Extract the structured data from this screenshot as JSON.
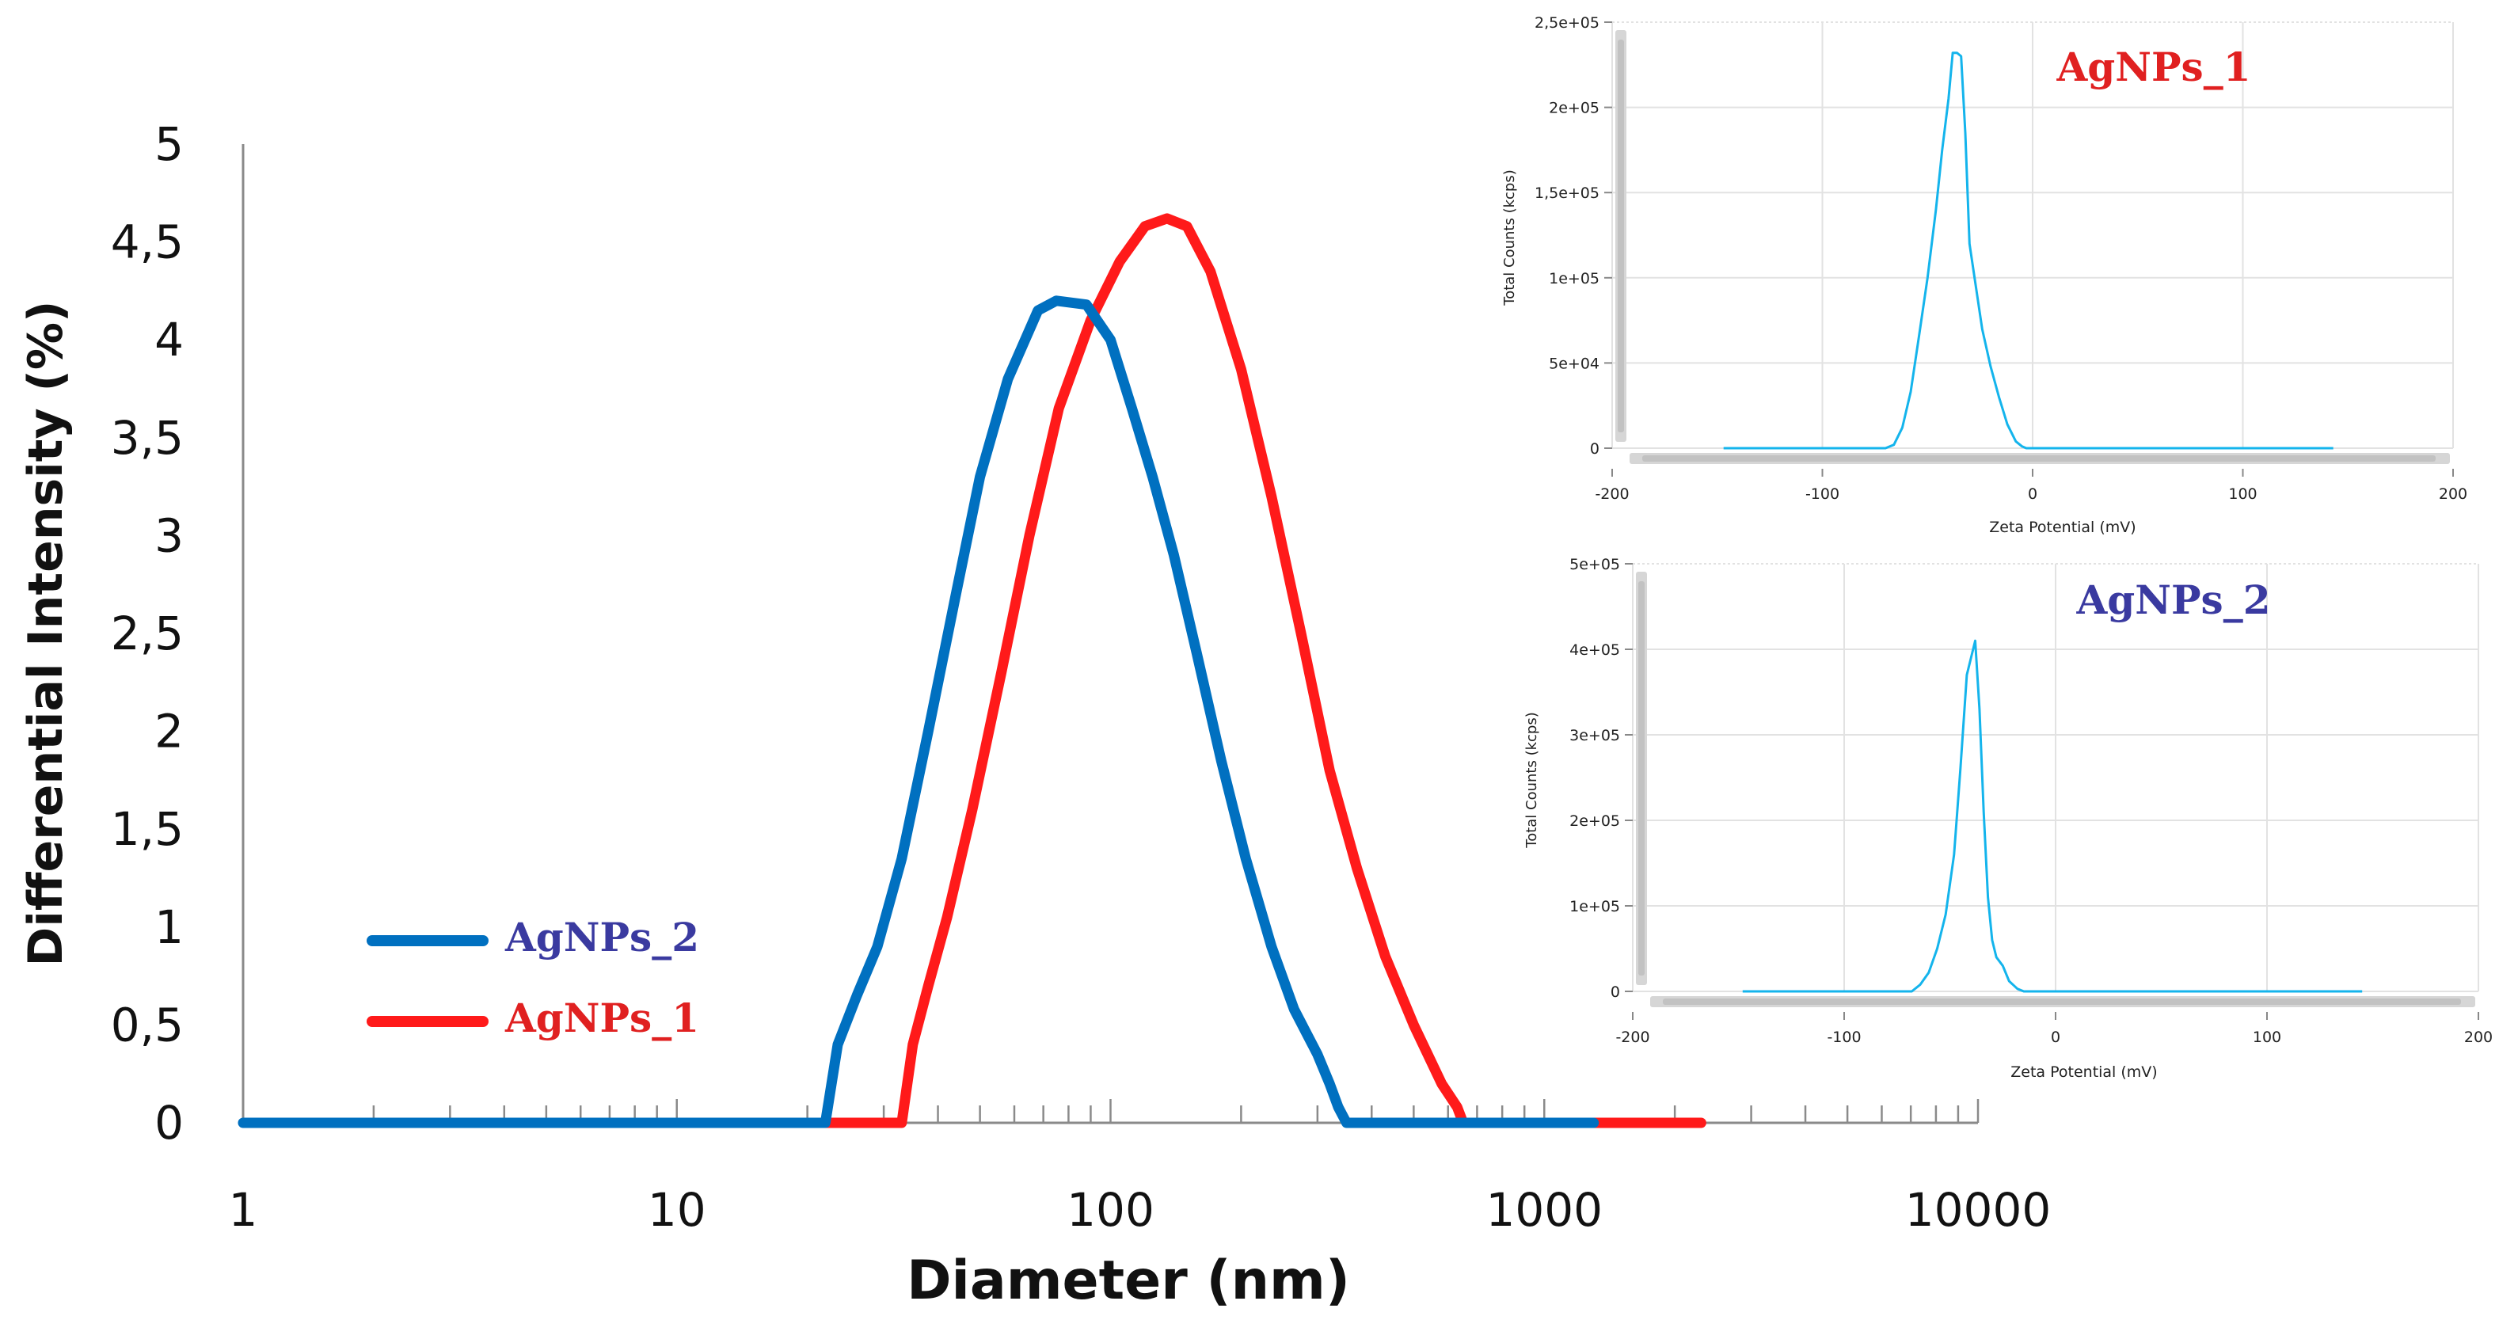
{
  "colors": {
    "series_agnps1": "#ff1a1a",
    "series_agnps2": "#0070c0",
    "inset_line": "#14b4ec",
    "label_red": "#e02020",
    "label_blue": "#3a3aa0"
  },
  "chart_data": [
    {
      "type": "line",
      "name": "main-size-distribution",
      "title": "",
      "xlabel": "Diameter (nm)",
      "ylabel": "Differential Intensity (%)",
      "xscale": "log",
      "xlim": [
        1,
        10000
      ],
      "ylim": [
        0,
        5
      ],
      "xticks": [
        1,
        10,
        100,
        1000,
        10000
      ],
      "xtick_labels": [
        "1",
        "10",
        "100",
        "1000",
        "10000"
      ],
      "yticks": [
        0,
        0.5,
        1,
        1.5,
        2,
        2.5,
        3,
        3.5,
        4,
        4.5,
        5
      ],
      "ytick_labels": [
        "0",
        "0,5",
        "1",
        "1,5",
        "2",
        "2,5",
        "3",
        "3,5",
        "4",
        "4,5",
        "5"
      ],
      "legend_position": "lower-left",
      "series": [
        {
          "name": "AgNPs_2",
          "color_key": "series_agnps2",
          "x": [
            1,
            22,
            23.5,
            26,
            29,
            33,
            38,
            44,
            50,
            58,
            68,
            75,
            88,
            100,
            112,
            125,
            140,
            158,
            180,
            205,
            235,
            265,
            300,
            320,
            335,
            350,
            1300
          ],
          "y": [
            0,
            0,
            0.4,
            0.65,
            0.9,
            1.35,
            2.0,
            2.7,
            3.3,
            3.8,
            4.15,
            4.2,
            4.18,
            4.0,
            3.65,
            3.3,
            2.9,
            2.4,
            1.85,
            1.35,
            0.9,
            0.58,
            0.35,
            0.2,
            0.08,
            0,
            0
          ]
        },
        {
          "name": "AgNPs_1",
          "color_key": "series_agnps1",
          "x": [
            22,
            33,
            35,
            38,
            42,
            48,
            56,
            65,
            76,
            90,
            105,
            120,
            135,
            150,
            170,
            200,
            235,
            275,
            320,
            370,
            430,
            500,
            580,
            630,
            650,
            2300
          ],
          "y": [
            0,
            0,
            0.4,
            0.7,
            1.05,
            1.6,
            2.3,
            3.0,
            3.65,
            4.1,
            4.4,
            4.58,
            4.62,
            4.58,
            4.35,
            3.85,
            3.2,
            2.5,
            1.8,
            1.3,
            0.85,
            0.5,
            0.2,
            0.08,
            0,
            0
          ]
        }
      ]
    },
    {
      "type": "line",
      "name": "zeta-inset-agnps1",
      "title": "AgNPs_1",
      "xlabel": "Zeta Potential (mV)",
      "ylabel": "Total Counts (kcps)",
      "xlim": [
        -200,
        200
      ],
      "ylim": [
        0,
        250000
      ],
      "xticks": [
        -200,
        -100,
        0,
        100,
        200
      ],
      "xtick_labels": [
        "-200",
        "-100",
        "0",
        "100",
        "200"
      ],
      "yticks": [
        0,
        50000,
        100000,
        150000,
        200000,
        250000
      ],
      "ytick_labels": [
        "0",
        "5e+04",
        "1e+05",
        "1,5e+05",
        "2e+05",
        "2,5e+05"
      ],
      "series": [
        {
          "name": "AgNPs_1",
          "x": [
            -147,
            -70,
            -66,
            -62,
            -58,
            -54,
            -50,
            -46,
            -43,
            -40,
            -38,
            -36,
            -34,
            -32,
            -30,
            -27,
            -24,
            -20,
            -16,
            -12,
            -8,
            -5,
            -3,
            143
          ],
          "y": [
            0,
            0,
            2000,
            12000,
            33000,
            66000,
            100000,
            140000,
            175000,
            205000,
            232000,
            232000,
            230000,
            185000,
            120000,
            95000,
            70000,
            48000,
            30000,
            14000,
            4000,
            1000,
            0,
            0
          ]
        }
      ]
    },
    {
      "type": "line",
      "name": "zeta-inset-agnps2",
      "title": "AgNPs_2",
      "xlabel": "Zeta Potential (mV)",
      "ylabel": "Total Counts (kcps)",
      "xlim": [
        -200,
        200
      ],
      "ylim": [
        0,
        500000
      ],
      "xticks": [
        -200,
        -100,
        0,
        100,
        200
      ],
      "xtick_labels": [
        "-200",
        "-100",
        "0",
        "100",
        "200"
      ],
      "yticks": [
        0,
        100000,
        200000,
        300000,
        400000,
        500000
      ],
      "ytick_labels": [
        "0",
        "1e+05",
        "2e+05",
        "3e+05",
        "4e+05",
        "5e+05"
      ],
      "series": [
        {
          "name": "AgNPs_2",
          "x": [
            -148,
            -68,
            -64,
            -60,
            -56,
            -52,
            -48,
            -45,
            -42,
            -40,
            -38,
            -36,
            -34,
            -32,
            -30,
            -28,
            -25,
            -22,
            -18,
            -15,
            145
          ],
          "y": [
            0,
            0,
            8000,
            22000,
            50000,
            90000,
            160000,
            260000,
            370000,
            390000,
            410000,
            330000,
            210000,
            110000,
            60000,
            40000,
            30000,
            12000,
            3000,
            0,
            0
          ]
        }
      ]
    }
  ]
}
